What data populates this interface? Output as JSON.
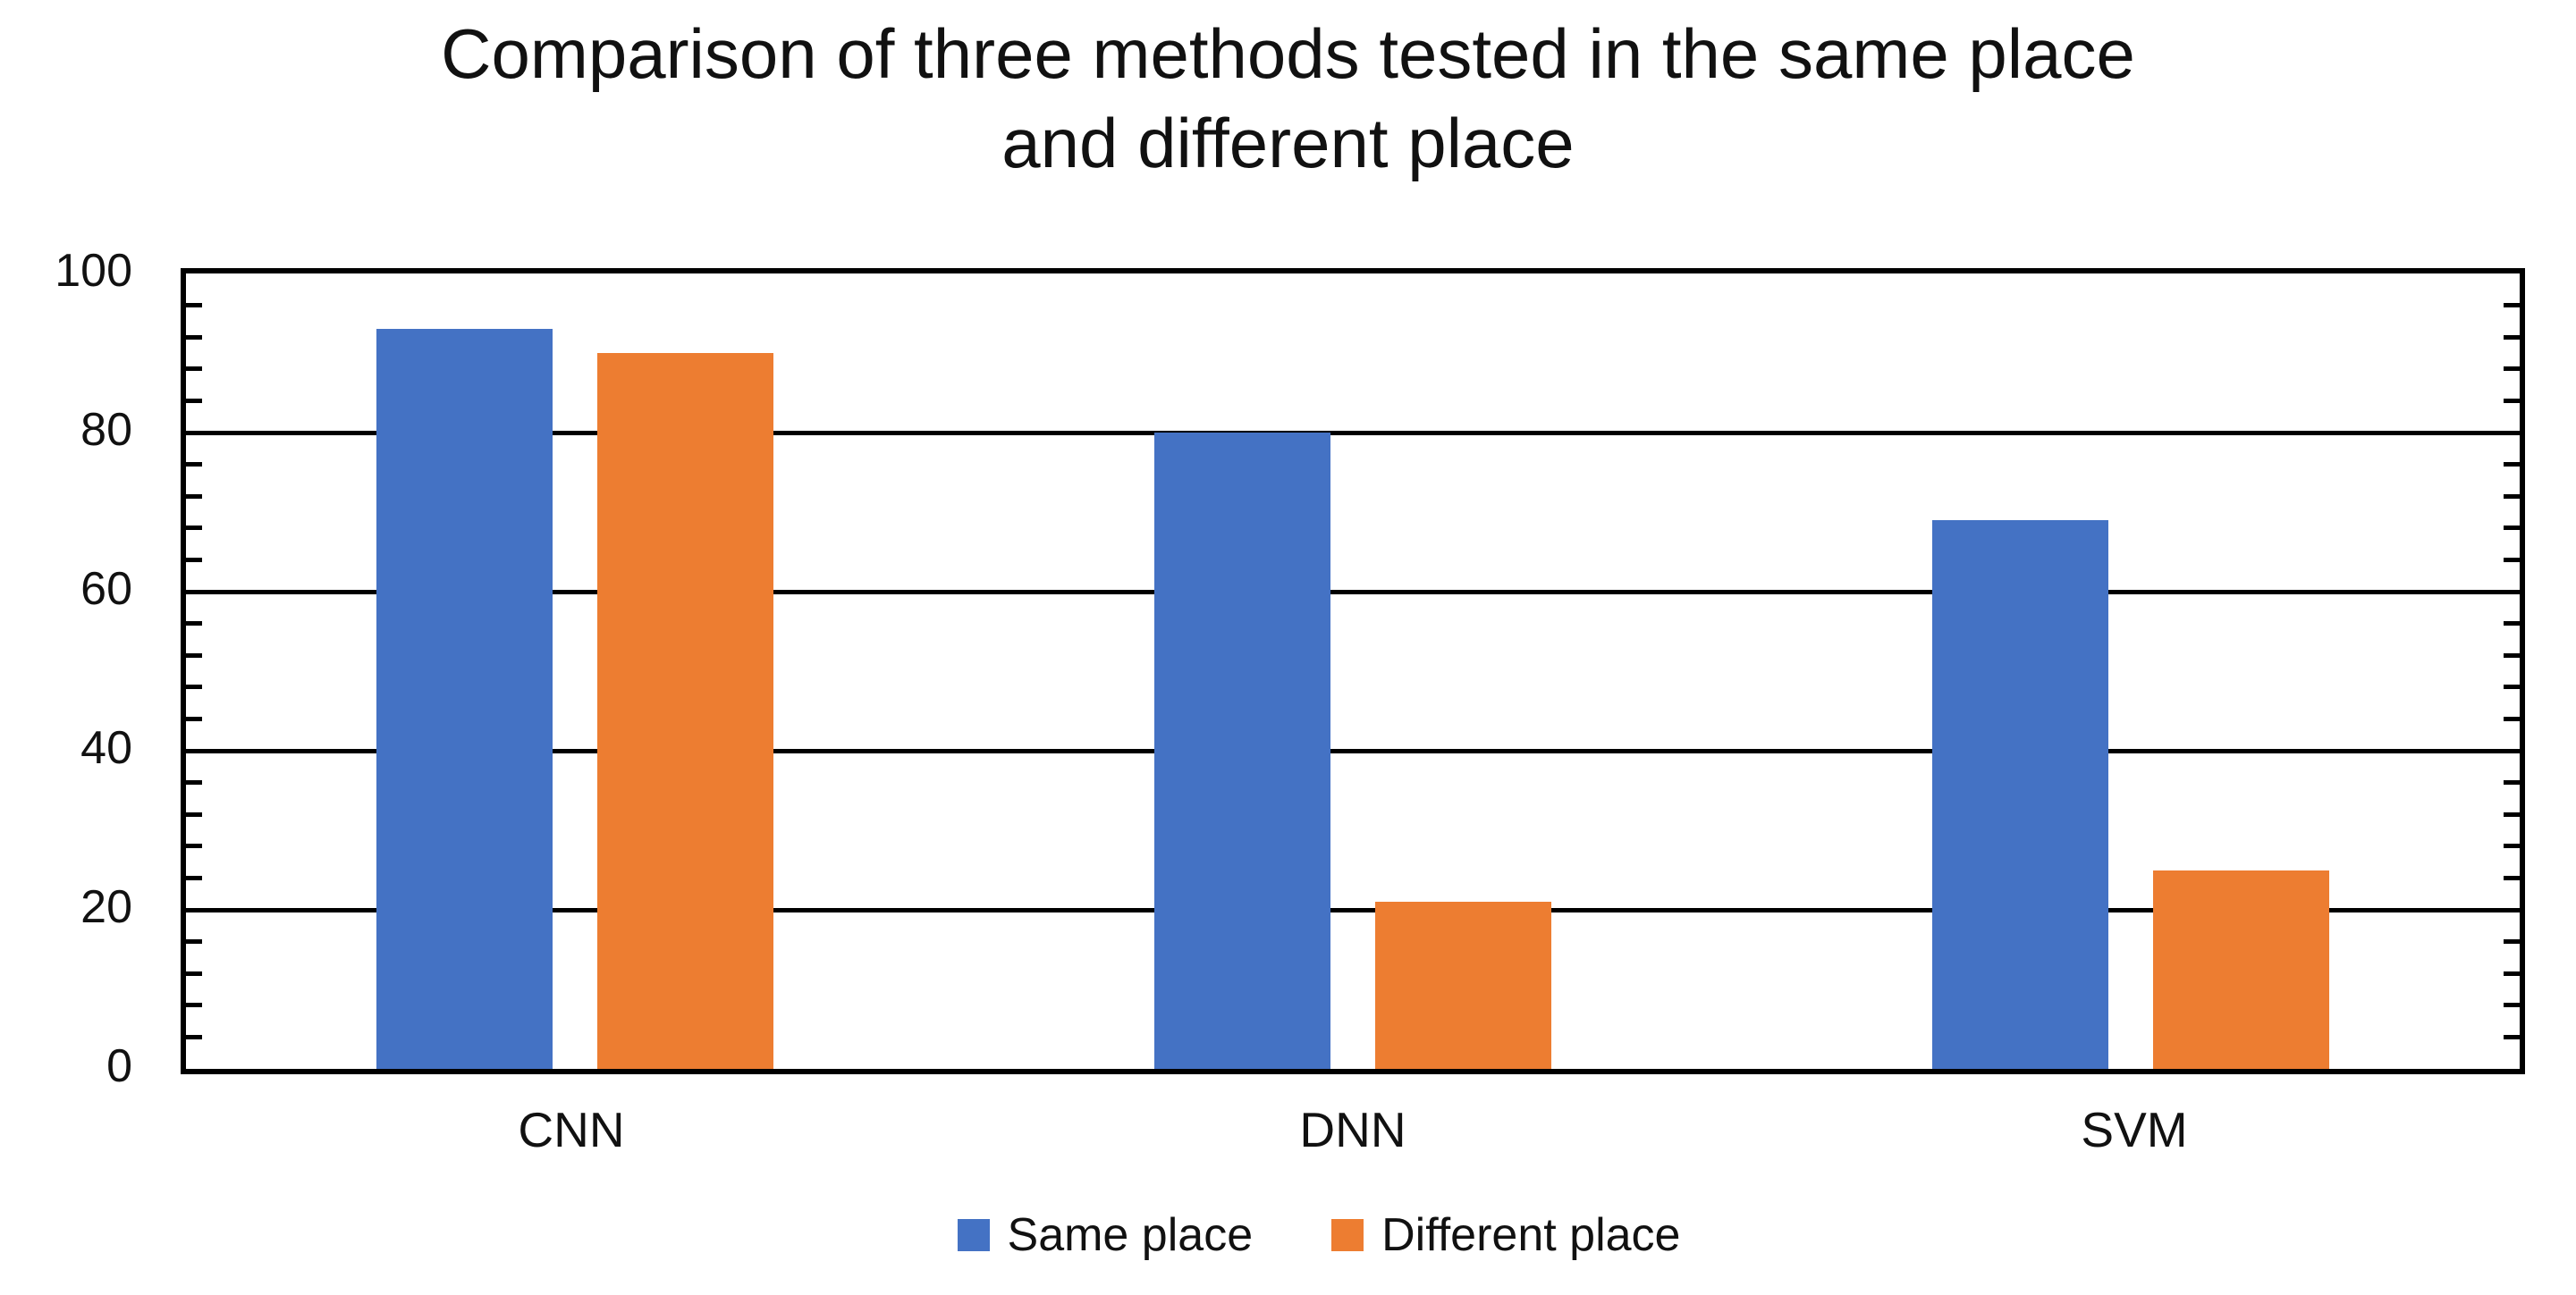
{
  "chart_data": {
    "type": "bar",
    "title": "Comparison of three methods tested in the same place and different place",
    "title_lines": [
      "Comparison of three methods tested in the same place",
      "and different place"
    ],
    "categories": [
      "CNN",
      "DNN",
      "SVM"
    ],
    "series": [
      {
        "name": "Same place",
        "color": "#4472C4",
        "values": [
          93,
          80,
          69
        ]
      },
      {
        "name": "Different place",
        "color": "#ED7D31",
        "values": [
          90,
          21,
          25
        ]
      }
    ],
    "xlabel": "",
    "ylabel": "",
    "ylim": [
      0,
      100
    ],
    "yticks": [
      0,
      20,
      40,
      60,
      80,
      100
    ],
    "ytick_labels": [
      "0",
      "20",
      "40",
      "60",
      "80",
      "100"
    ],
    "major_gridline_interval": 20,
    "minor_tick_interval": 4,
    "grid": "horizontal-major",
    "plot_border": "black",
    "legend_position": "bottom",
    "background_color": "#FFFFFF",
    "text_color": "#111111"
  }
}
